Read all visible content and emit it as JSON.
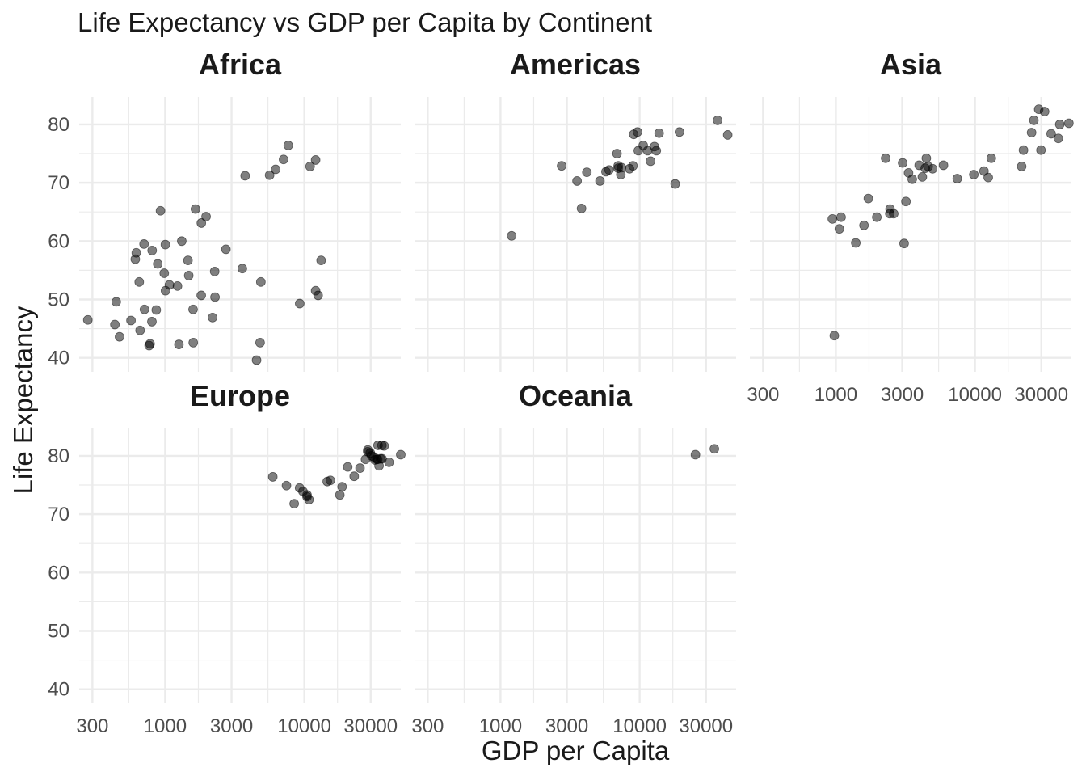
{
  "chart_data": {
    "type": "scatter",
    "title": "Life Expectancy vs GDP per Capita by Continent",
    "xlabel": "GDP per Capita",
    "ylabel": "Life Expectancy",
    "x_scale": "log10",
    "xlim": [
      241,
      49357
    ],
    "ylim": [
      37.6,
      84.7
    ],
    "x_ticks": [
      300,
      1000,
      3000,
      10000,
      30000
    ],
    "x_tick_labels": [
      "300",
      "1000",
      "3000",
      "10000",
      "30000"
    ],
    "y_ticks": [
      40,
      50,
      60,
      70,
      80
    ],
    "y_tick_labels": [
      "40",
      "50",
      "60",
      "70",
      "80"
    ],
    "grid": true,
    "legend": "none",
    "facets": [
      {
        "name": "Africa",
        "points": [
          [
            278,
            46.5
          ],
          [
            435,
            45.7
          ],
          [
            445,
            49.6
          ],
          [
            470,
            43.6
          ],
          [
            568,
            46.4
          ],
          [
            610,
            56.9
          ],
          [
            620,
            58.0
          ],
          [
            651,
            53.0
          ],
          [
            660,
            44.7
          ],
          [
            705,
            59.5
          ],
          [
            710,
            48.3
          ],
          [
            767,
            42.1
          ],
          [
            779,
            42.4
          ],
          [
            803,
            46.2
          ],
          [
            806,
            58.4
          ],
          [
            863,
            48.2
          ],
          [
            884,
            56.1
          ],
          [
            926,
            65.2
          ],
          [
            985,
            54.5
          ],
          [
            1004,
            59.4
          ],
          [
            1006,
            51.5
          ],
          [
            1073,
            52.5
          ],
          [
            1226,
            52.3
          ],
          [
            1255,
            42.3
          ],
          [
            1316,
            60.0
          ],
          [
            1458,
            56.7
          ],
          [
            1477,
            54.1
          ],
          [
            1587,
            48.3
          ],
          [
            1592,
            42.6
          ],
          [
            1651,
            65.5
          ],
          [
            1817,
            50.7
          ],
          [
            1820,
            63.1
          ],
          [
            1968,
            64.2
          ],
          [
            2191,
            46.9
          ],
          [
            2281,
            50.4
          ],
          [
            2269,
            54.8
          ],
          [
            2733,
            58.6
          ],
          [
            3586,
            55.3
          ],
          [
            3756,
            71.2
          ],
          [
            4539,
            39.6
          ],
          [
            4811,
            42.6
          ],
          [
            4873,
            53.0
          ],
          [
            5631,
            71.3
          ],
          [
            6223,
            72.3
          ],
          [
            7093,
            74.0
          ],
          [
            7670,
            76.4
          ],
          [
            9269,
            49.3
          ],
          [
            11002,
            72.8
          ],
          [
            12058,
            51.5
          ],
          [
            12057,
            73.9
          ],
          [
            12570,
            50.7
          ],
          [
            13206,
            56.7
          ]
        ]
      },
      {
        "name": "Americas",
        "points": [
          [
            1202,
            60.9
          ],
          [
            2749,
            72.9
          ],
          [
            3548,
            70.3
          ],
          [
            3822,
            65.6
          ],
          [
            4173,
            71.8
          ],
          [
            5186,
            70.3
          ],
          [
            5728,
            71.9
          ],
          [
            6025,
            72.2
          ],
          [
            6873,
            75.0
          ],
          [
            7009,
            72.9
          ],
          [
            7321,
            71.4
          ],
          [
            7408,
            72.6
          ],
          [
            8948,
            72.9
          ],
          [
            9065,
            78.3
          ],
          [
            9645,
            78.7
          ],
          [
            10611,
            76.4
          ],
          [
            11416,
            75.5
          ],
          [
            11978,
            73.7
          ],
          [
            12779,
            76.2
          ],
          [
            13172,
            75.5
          ],
          [
            18008,
            69.8
          ],
          [
            19329,
            78.7
          ],
          [
            36319,
            80.7
          ],
          [
            42952,
            78.2
          ],
          [
            8458,
            72.4
          ],
          [
            9786,
            75.5
          ],
          [
            7006,
            72.5
          ],
          [
            13800,
            78.5
          ]
        ]
      },
      {
        "name": "Asia",
        "points": [
          [
            944,
            63.8
          ],
          [
            975,
            43.8
          ],
          [
            1091,
            64.1
          ],
          [
            1391,
            59.7
          ],
          [
            1593,
            62.7
          ],
          [
            1713,
            67.3
          ],
          [
            2280,
            74.2
          ],
          [
            2442,
            64.7
          ],
          [
            2453,
            65.5
          ],
          [
            3095,
            59.6
          ],
          [
            3190,
            66.8
          ],
          [
            3540,
            70.6
          ],
          [
            4185,
            71.0
          ],
          [
            4471,
            74.2
          ],
          [
            4959,
            72.4
          ],
          [
            5937,
            73.0
          ],
          [
            7458,
            70.7
          ],
          [
            9809,
            71.4
          ],
          [
            11606,
            72.0
          ],
          [
            12452,
            70.9
          ],
          [
            21655,
            72.8
          ],
          [
            22316,
            75.6
          ],
          [
            25523,
            78.6
          ],
          [
            28718,
            82.6
          ],
          [
            31656,
            82.2
          ],
          [
            35279,
            78.4
          ],
          [
            39725,
            77.6
          ],
          [
            47307,
            80.2
          ],
          [
            3020,
            73.4
          ],
          [
            3330,
            71.7
          ],
          [
            4390,
            72.5
          ],
          [
            4610,
            72.8
          ],
          [
            1970,
            64.1
          ],
          [
            2605,
            64.7
          ],
          [
            3970,
            73.0
          ],
          [
            26500,
            80.7
          ],
          [
            29800,
            75.6
          ],
          [
            40700,
            80.0
          ],
          [
            13100,
            74.2
          ],
          [
            1060,
            62.1
          ]
        ]
      },
      {
        "name": "Europe",
        "points": [
          [
            5937,
            76.4
          ],
          [
            7446,
            74.9
          ],
          [
            8458,
            71.8
          ],
          [
            9253,
            74.5
          ],
          [
            9786,
            73.9
          ],
          [
            10461,
            73.3
          ],
          [
            10808,
            72.5
          ],
          [
            10460,
            73.0
          ],
          [
            14619,
            75.6
          ],
          [
            15390,
            75.8
          ],
          [
            18009,
            73.3
          ],
          [
            18678,
            74.7
          ],
          [
            20510,
            78.1
          ],
          [
            22833,
            76.5
          ],
          [
            25144,
            77.9
          ],
          [
            27538,
            79.4
          ],
          [
            28569,
            80.7
          ],
          [
            28604,
            81.0
          ],
          [
            29796,
            80.5
          ],
          [
            30470,
            80.0
          ],
          [
            31656,
            79.8
          ],
          [
            32170,
            79.3
          ],
          [
            33207,
            79.4
          ],
          [
            33692,
            79.4
          ],
          [
            33860,
            81.8
          ],
          [
            34435,
            78.3
          ],
          [
            35278,
            79.5
          ],
          [
            36126,
            81.8
          ],
          [
            36181,
            79.5
          ],
          [
            37506,
            81.7
          ],
          [
            40676,
            78.9
          ],
          [
            49357,
            80.2
          ]
        ]
      },
      {
        "name": "Oceania",
        "points": [
          [
            25185,
            80.2
          ],
          [
            34435,
            81.2
          ]
        ]
      }
    ]
  }
}
